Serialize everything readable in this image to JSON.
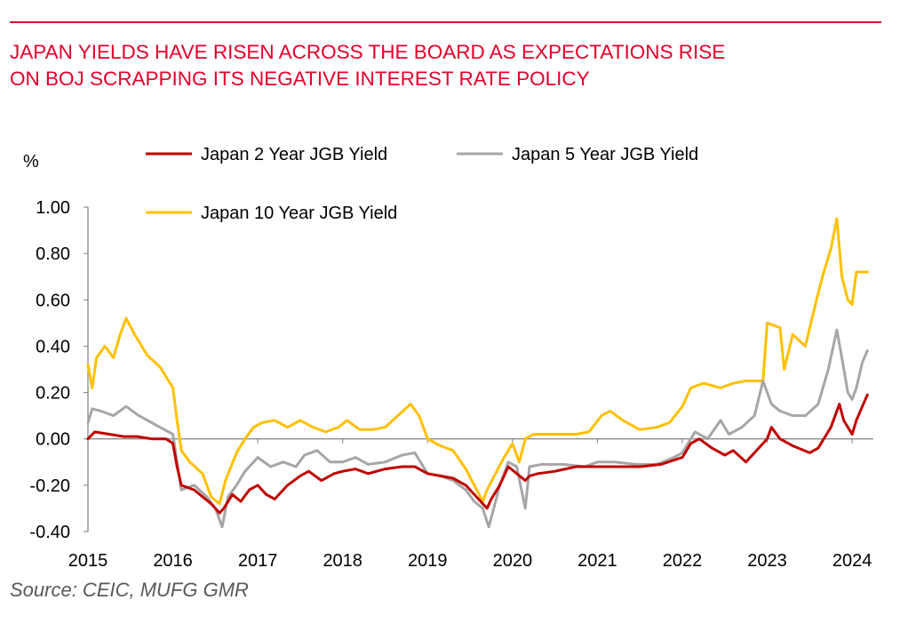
{
  "header": {
    "title_line1": "JAPAN YIELDS HAVE RISEN ACROSS THE BOARD AS EXPECTATIONS RISE",
    "title_line2": "ON BOJ SCRAPPING ITS NEGATIVE INTEREST RATE POLICY"
  },
  "footer": {
    "source": "Source: CEIC, MUFG GMR"
  },
  "colors": {
    "accent": "#e4002b",
    "series2y": "#c00000",
    "series5y": "#a6a6a6",
    "series10y": "#ffc000"
  },
  "chart_data": {
    "type": "line",
    "title": "JAPAN YIELDS HAVE RISEN ACROSS THE BOARD AS EXPECTATIONS RISE ON BOJ SCRAPPING ITS NEGATIVE INTEREST RATE POLICY",
    "xlabel": "",
    "ylabel": "%",
    "ylim": [
      -0.4,
      1.0
    ],
    "xlim": [
      2015.0,
      2024.25
    ],
    "yticks": [
      "1.00",
      "0.80",
      "0.60",
      "0.40",
      "0.20",
      "0.00",
      "-0.20",
      "-0.40"
    ],
    "xticks": [
      "2015",
      "2016",
      "2017",
      "2018",
      "2019",
      "2020",
      "2021",
      "2022",
      "2023",
      "2024"
    ],
    "grid": false,
    "legend_position": "top",
    "series": [
      {
        "name": "Japan 2 Year JGB Yield",
        "color": "#c00000",
        "points": [
          [
            2015.0,
            0.0
          ],
          [
            2015.08,
            0.03
          ],
          [
            2015.25,
            0.02
          ],
          [
            2015.42,
            0.01
          ],
          [
            2015.58,
            0.01
          ],
          [
            2015.75,
            0.0
          ],
          [
            2015.92,
            0.0
          ],
          [
            2016.0,
            -0.02
          ],
          [
            2016.05,
            -0.12
          ],
          [
            2016.1,
            -0.2
          ],
          [
            2016.25,
            -0.22
          ],
          [
            2016.35,
            -0.25
          ],
          [
            2016.45,
            -0.28
          ],
          [
            2016.55,
            -0.32
          ],
          [
            2016.6,
            -0.3
          ],
          [
            2016.7,
            -0.24
          ],
          [
            2016.8,
            -0.27
          ],
          [
            2016.9,
            -0.22
          ],
          [
            2017.0,
            -0.2
          ],
          [
            2017.1,
            -0.24
          ],
          [
            2017.2,
            -0.26
          ],
          [
            2017.35,
            -0.2
          ],
          [
            2017.5,
            -0.16
          ],
          [
            2017.6,
            -0.14
          ],
          [
            2017.75,
            -0.18
          ],
          [
            2017.9,
            -0.15
          ],
          [
            2018.0,
            -0.14
          ],
          [
            2018.15,
            -0.13
          ],
          [
            2018.3,
            -0.15
          ],
          [
            2018.5,
            -0.13
          ],
          [
            2018.7,
            -0.12
          ],
          [
            2018.85,
            -0.12
          ],
          [
            2019.0,
            -0.15
          ],
          [
            2019.15,
            -0.16
          ],
          [
            2019.3,
            -0.17
          ],
          [
            2019.45,
            -0.2
          ],
          [
            2019.55,
            -0.24
          ],
          [
            2019.65,
            -0.28
          ],
          [
            2019.7,
            -0.3
          ],
          [
            2019.75,
            -0.26
          ],
          [
            2019.85,
            -0.2
          ],
          [
            2019.95,
            -0.12
          ],
          [
            2020.05,
            -0.15
          ],
          [
            2020.15,
            -0.18
          ],
          [
            2020.2,
            -0.16
          ],
          [
            2020.3,
            -0.15
          ],
          [
            2020.5,
            -0.14
          ],
          [
            2020.75,
            -0.12
          ],
          [
            2021.0,
            -0.12
          ],
          [
            2021.25,
            -0.12
          ],
          [
            2021.5,
            -0.12
          ],
          [
            2021.75,
            -0.11
          ],
          [
            2022.0,
            -0.08
          ],
          [
            2022.1,
            -0.02
          ],
          [
            2022.2,
            0.0
          ],
          [
            2022.35,
            -0.04
          ],
          [
            2022.5,
            -0.07
          ],
          [
            2022.6,
            -0.05
          ],
          [
            2022.75,
            -0.1
          ],
          [
            2022.9,
            -0.04
          ],
          [
            2023.0,
            0.0
          ],
          [
            2023.05,
            0.05
          ],
          [
            2023.15,
            0.0
          ],
          [
            2023.3,
            -0.03
          ],
          [
            2023.5,
            -0.06
          ],
          [
            2023.6,
            -0.04
          ],
          [
            2023.75,
            0.05
          ],
          [
            2023.85,
            0.15
          ],
          [
            2023.9,
            0.08
          ],
          [
            2024.0,
            0.02
          ],
          [
            2024.05,
            0.08
          ],
          [
            2024.12,
            0.14
          ],
          [
            2024.18,
            0.19
          ]
        ]
      },
      {
        "name": "Japan 5 Year JGB Yield",
        "color": "#a6a6a6",
        "points": [
          [
            2015.0,
            0.07
          ],
          [
            2015.05,
            0.13
          ],
          [
            2015.15,
            0.12
          ],
          [
            2015.3,
            0.1
          ],
          [
            2015.45,
            0.14
          ],
          [
            2015.6,
            0.1
          ],
          [
            2015.75,
            0.07
          ],
          [
            2015.9,
            0.04
          ],
          [
            2016.0,
            0.02
          ],
          [
            2016.05,
            -0.1
          ],
          [
            2016.1,
            -0.22
          ],
          [
            2016.25,
            -0.2
          ],
          [
            2016.4,
            -0.25
          ],
          [
            2016.5,
            -0.3
          ],
          [
            2016.58,
            -0.38
          ],
          [
            2016.65,
            -0.25
          ],
          [
            2016.75,
            -0.2
          ],
          [
            2016.85,
            -0.14
          ],
          [
            2016.95,
            -0.1
          ],
          [
            2017.0,
            -0.08
          ],
          [
            2017.15,
            -0.12
          ],
          [
            2017.3,
            -0.1
          ],
          [
            2017.45,
            -0.12
          ],
          [
            2017.55,
            -0.07
          ],
          [
            2017.7,
            -0.05
          ],
          [
            2017.85,
            -0.1
          ],
          [
            2018.0,
            -0.1
          ],
          [
            2018.15,
            -0.08
          ],
          [
            2018.3,
            -0.11
          ],
          [
            2018.5,
            -0.1
          ],
          [
            2018.7,
            -0.07
          ],
          [
            2018.85,
            -0.06
          ],
          [
            2019.0,
            -0.15
          ],
          [
            2019.15,
            -0.16
          ],
          [
            2019.3,
            -0.18
          ],
          [
            2019.45,
            -0.22
          ],
          [
            2019.55,
            -0.27
          ],
          [
            2019.65,
            -0.3
          ],
          [
            2019.72,
            -0.38
          ],
          [
            2019.78,
            -0.3
          ],
          [
            2019.85,
            -0.2
          ],
          [
            2019.95,
            -0.1
          ],
          [
            2020.05,
            -0.12
          ],
          [
            2020.15,
            -0.3
          ],
          [
            2020.2,
            -0.12
          ],
          [
            2020.35,
            -0.11
          ],
          [
            2020.6,
            -0.11
          ],
          [
            2020.85,
            -0.12
          ],
          [
            2021.0,
            -0.1
          ],
          [
            2021.2,
            -0.1
          ],
          [
            2021.45,
            -0.11
          ],
          [
            2021.7,
            -0.11
          ],
          [
            2021.9,
            -0.08
          ],
          [
            2022.0,
            -0.06
          ],
          [
            2022.15,
            0.03
          ],
          [
            2022.3,
            0.0
          ],
          [
            2022.45,
            0.08
          ],
          [
            2022.55,
            0.02
          ],
          [
            2022.7,
            0.05
          ],
          [
            2022.85,
            0.1
          ],
          [
            2022.95,
            0.25
          ],
          [
            2023.05,
            0.15
          ],
          [
            2023.15,
            0.12
          ],
          [
            2023.3,
            0.1
          ],
          [
            2023.45,
            0.1
          ],
          [
            2023.6,
            0.15
          ],
          [
            2023.72,
            0.3
          ],
          [
            2023.82,
            0.47
          ],
          [
            2023.88,
            0.35
          ],
          [
            2023.95,
            0.2
          ],
          [
            2024.0,
            0.17
          ],
          [
            2024.05,
            0.22
          ],
          [
            2024.12,
            0.33
          ],
          [
            2024.18,
            0.38
          ]
        ]
      },
      {
        "name": "Japan 10 Year JGB Yield",
        "color": "#ffc000",
        "points": [
          [
            2015.0,
            0.32
          ],
          [
            2015.05,
            0.22
          ],
          [
            2015.1,
            0.35
          ],
          [
            2015.2,
            0.4
          ],
          [
            2015.3,
            0.35
          ],
          [
            2015.38,
            0.45
          ],
          [
            2015.45,
            0.52
          ],
          [
            2015.55,
            0.45
          ],
          [
            2015.7,
            0.36
          ],
          [
            2015.85,
            0.31
          ],
          [
            2015.95,
            0.25
          ],
          [
            2016.0,
            0.22
          ],
          [
            2016.05,
            0.08
          ],
          [
            2016.1,
            -0.05
          ],
          [
            2016.2,
            -0.1
          ],
          [
            2016.35,
            -0.15
          ],
          [
            2016.45,
            -0.25
          ],
          [
            2016.55,
            -0.28
          ],
          [
            2016.62,
            -0.18
          ],
          [
            2016.75,
            -0.06
          ],
          [
            2016.85,
            0.0
          ],
          [
            2016.95,
            0.05
          ],
          [
            2017.05,
            0.07
          ],
          [
            2017.2,
            0.08
          ],
          [
            2017.35,
            0.05
          ],
          [
            2017.5,
            0.08
          ],
          [
            2017.65,
            0.05
          ],
          [
            2017.8,
            0.03
          ],
          [
            2017.95,
            0.05
          ],
          [
            2018.05,
            0.08
          ],
          [
            2018.2,
            0.04
          ],
          [
            2018.35,
            0.04
          ],
          [
            2018.5,
            0.05
          ],
          [
            2018.65,
            0.1
          ],
          [
            2018.8,
            0.15
          ],
          [
            2018.9,
            0.1
          ],
          [
            2019.0,
            0.0
          ],
          [
            2019.15,
            -0.03
          ],
          [
            2019.3,
            -0.05
          ],
          [
            2019.45,
            -0.13
          ],
          [
            2019.55,
            -0.2
          ],
          [
            2019.65,
            -0.27
          ],
          [
            2019.7,
            -0.22
          ],
          [
            2019.8,
            -0.15
          ],
          [
            2019.9,
            -0.08
          ],
          [
            2020.0,
            -0.02
          ],
          [
            2020.08,
            -0.1
          ],
          [
            2020.15,
            0.0
          ],
          [
            2020.25,
            0.02
          ],
          [
            2020.5,
            0.02
          ],
          [
            2020.75,
            0.02
          ],
          [
            2020.9,
            0.03
          ],
          [
            2021.05,
            0.1
          ],
          [
            2021.15,
            0.12
          ],
          [
            2021.3,
            0.08
          ],
          [
            2021.5,
            0.04
          ],
          [
            2021.7,
            0.05
          ],
          [
            2021.85,
            0.07
          ],
          [
            2022.0,
            0.14
          ],
          [
            2022.1,
            0.22
          ],
          [
            2022.25,
            0.24
          ],
          [
            2022.45,
            0.22
          ],
          [
            2022.6,
            0.24
          ],
          [
            2022.75,
            0.25
          ],
          [
            2022.95,
            0.25
          ],
          [
            2023.0,
            0.5
          ],
          [
            2023.15,
            0.48
          ],
          [
            2023.2,
            0.3
          ],
          [
            2023.3,
            0.45
          ],
          [
            2023.45,
            0.4
          ],
          [
            2023.58,
            0.6
          ],
          [
            2023.65,
            0.7
          ],
          [
            2023.75,
            0.82
          ],
          [
            2023.82,
            0.95
          ],
          [
            2023.88,
            0.7
          ],
          [
            2023.95,
            0.6
          ],
          [
            2024.0,
            0.58
          ],
          [
            2024.05,
            0.72
          ],
          [
            2024.12,
            0.72
          ],
          [
            2024.18,
            0.72
          ]
        ]
      }
    ]
  }
}
